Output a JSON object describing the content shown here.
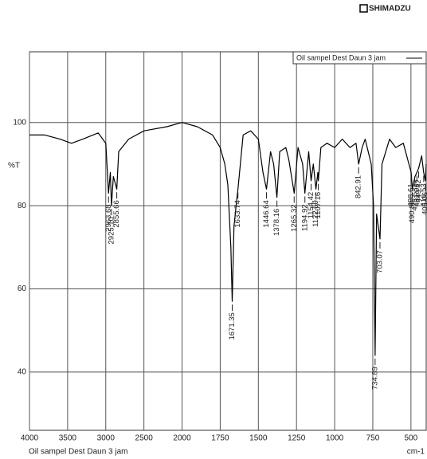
{
  "logo": "SHIMADZU",
  "chart_data": {
    "type": "line",
    "x_label": "cm-1",
    "y_label": "%T",
    "caption": "Oil sampel Dest Daun 3 jam",
    "x": [
      4000,
      3800,
      3600,
      3450,
      3300,
      3100,
      3000,
      2963.68,
      2940,
      2925.1,
      2900,
      2870,
      2855.66,
      2830,
      2700,
      2500,
      2200,
      2000,
      1900,
      1800,
      1750,
      1720,
      1700,
      1680,
      1671.35,
      1660,
      1640,
      1633.74,
      1600,
      1550,
      1500,
      1470,
      1446.64,
      1420,
      1400,
      1378.16,
      1360,
      1320,
      1300,
      1265.32,
      1240,
      1210,
      1194.92,
      1170,
      1154.42,
      1140,
      1122.59,
      1110,
      1107.16,
      1090,
      1050,
      1000,
      950,
      900,
      860,
      842.91,
      820,
      800,
      780,
      760,
      745,
      734.89,
      725,
      703.07,
      690,
      640,
      600,
      550,
      498.61,
      490.89,
      473.53,
      461.06,
      449.42,
      430,
      416.53,
      405.06,
      400
    ],
    "series": [
      {
        "name": "Oil sampel Dest Daun 3 jam",
        "color": "#000000",
        "values": [
          97,
          97,
          96,
          95,
          96,
          97.5,
          95,
          83,
          88,
          80,
          87,
          85,
          84,
          93,
          96,
          98,
          99,
          100,
          99,
          97,
          94,
          90,
          85,
          70,
          57,
          75,
          82,
          84,
          97,
          98,
          96,
          88,
          84,
          93,
          90,
          82,
          93,
          94,
          91,
          83,
          94,
          90,
          83,
          93,
          86,
          90,
          84,
          88,
          86,
          94,
          95,
          94,
          96,
          94,
          95,
          90,
          94,
          96,
          93,
          90,
          80,
          44,
          78,
          72,
          90,
          96,
          94,
          95,
          88,
          84,
          87,
          88,
          89,
          92,
          88,
          86,
          90
        ]
      }
    ],
    "peak_labels": [
      {
        "value": 2963.68,
        "label": "2963.68"
      },
      {
        "value": 2925.1,
        "label": "2925.10"
      },
      {
        "value": 2855.66,
        "label": "2855.66"
      },
      {
        "value": 1671.35,
        "label": "1671.35"
      },
      {
        "value": 1633.74,
        "label": "1633.74"
      },
      {
        "value": 1446.64,
        "label": "1446.64"
      },
      {
        "value": 1378.16,
        "label": "1378.16"
      },
      {
        "value": 1265.32,
        "label": "1265.32"
      },
      {
        "value": 1194.92,
        "label": "1194.92"
      },
      {
        "value": 1154.42,
        "label": "1154.42"
      },
      {
        "value": 1122.59,
        "label": "1122.59"
      },
      {
        "value": 1107.16,
        "label": "1107.16"
      },
      {
        "value": 842.91,
        "label": "842.91"
      },
      {
        "value": 734.89,
        "label": "734.89"
      },
      {
        "value": 703.07,
        "label": "703.07"
      },
      {
        "value": 498.61,
        "label": "498.61"
      },
      {
        "value": 490.89,
        "label": "490.89"
      },
      {
        "value": 473.53,
        "label": "473.53"
      },
      {
        "value": 461.06,
        "label": "461.06"
      },
      {
        "value": 449.42,
        "label": "449.42"
      },
      {
        "value": 416.53,
        "label": "416.53"
      },
      {
        "value": 405.06,
        "label": "405.06"
      }
    ],
    "xlim": [
      4000,
      400
    ],
    "xticks": [
      4000,
      3500,
      3000,
      2500,
      2000,
      1750,
      1500,
      1250,
      1000,
      750,
      500
    ],
    "ylim": [
      26,
      117
    ],
    "yticks": [
      40,
      60,
      80,
      100
    ],
    "grid": true,
    "legend": "upper right"
  }
}
